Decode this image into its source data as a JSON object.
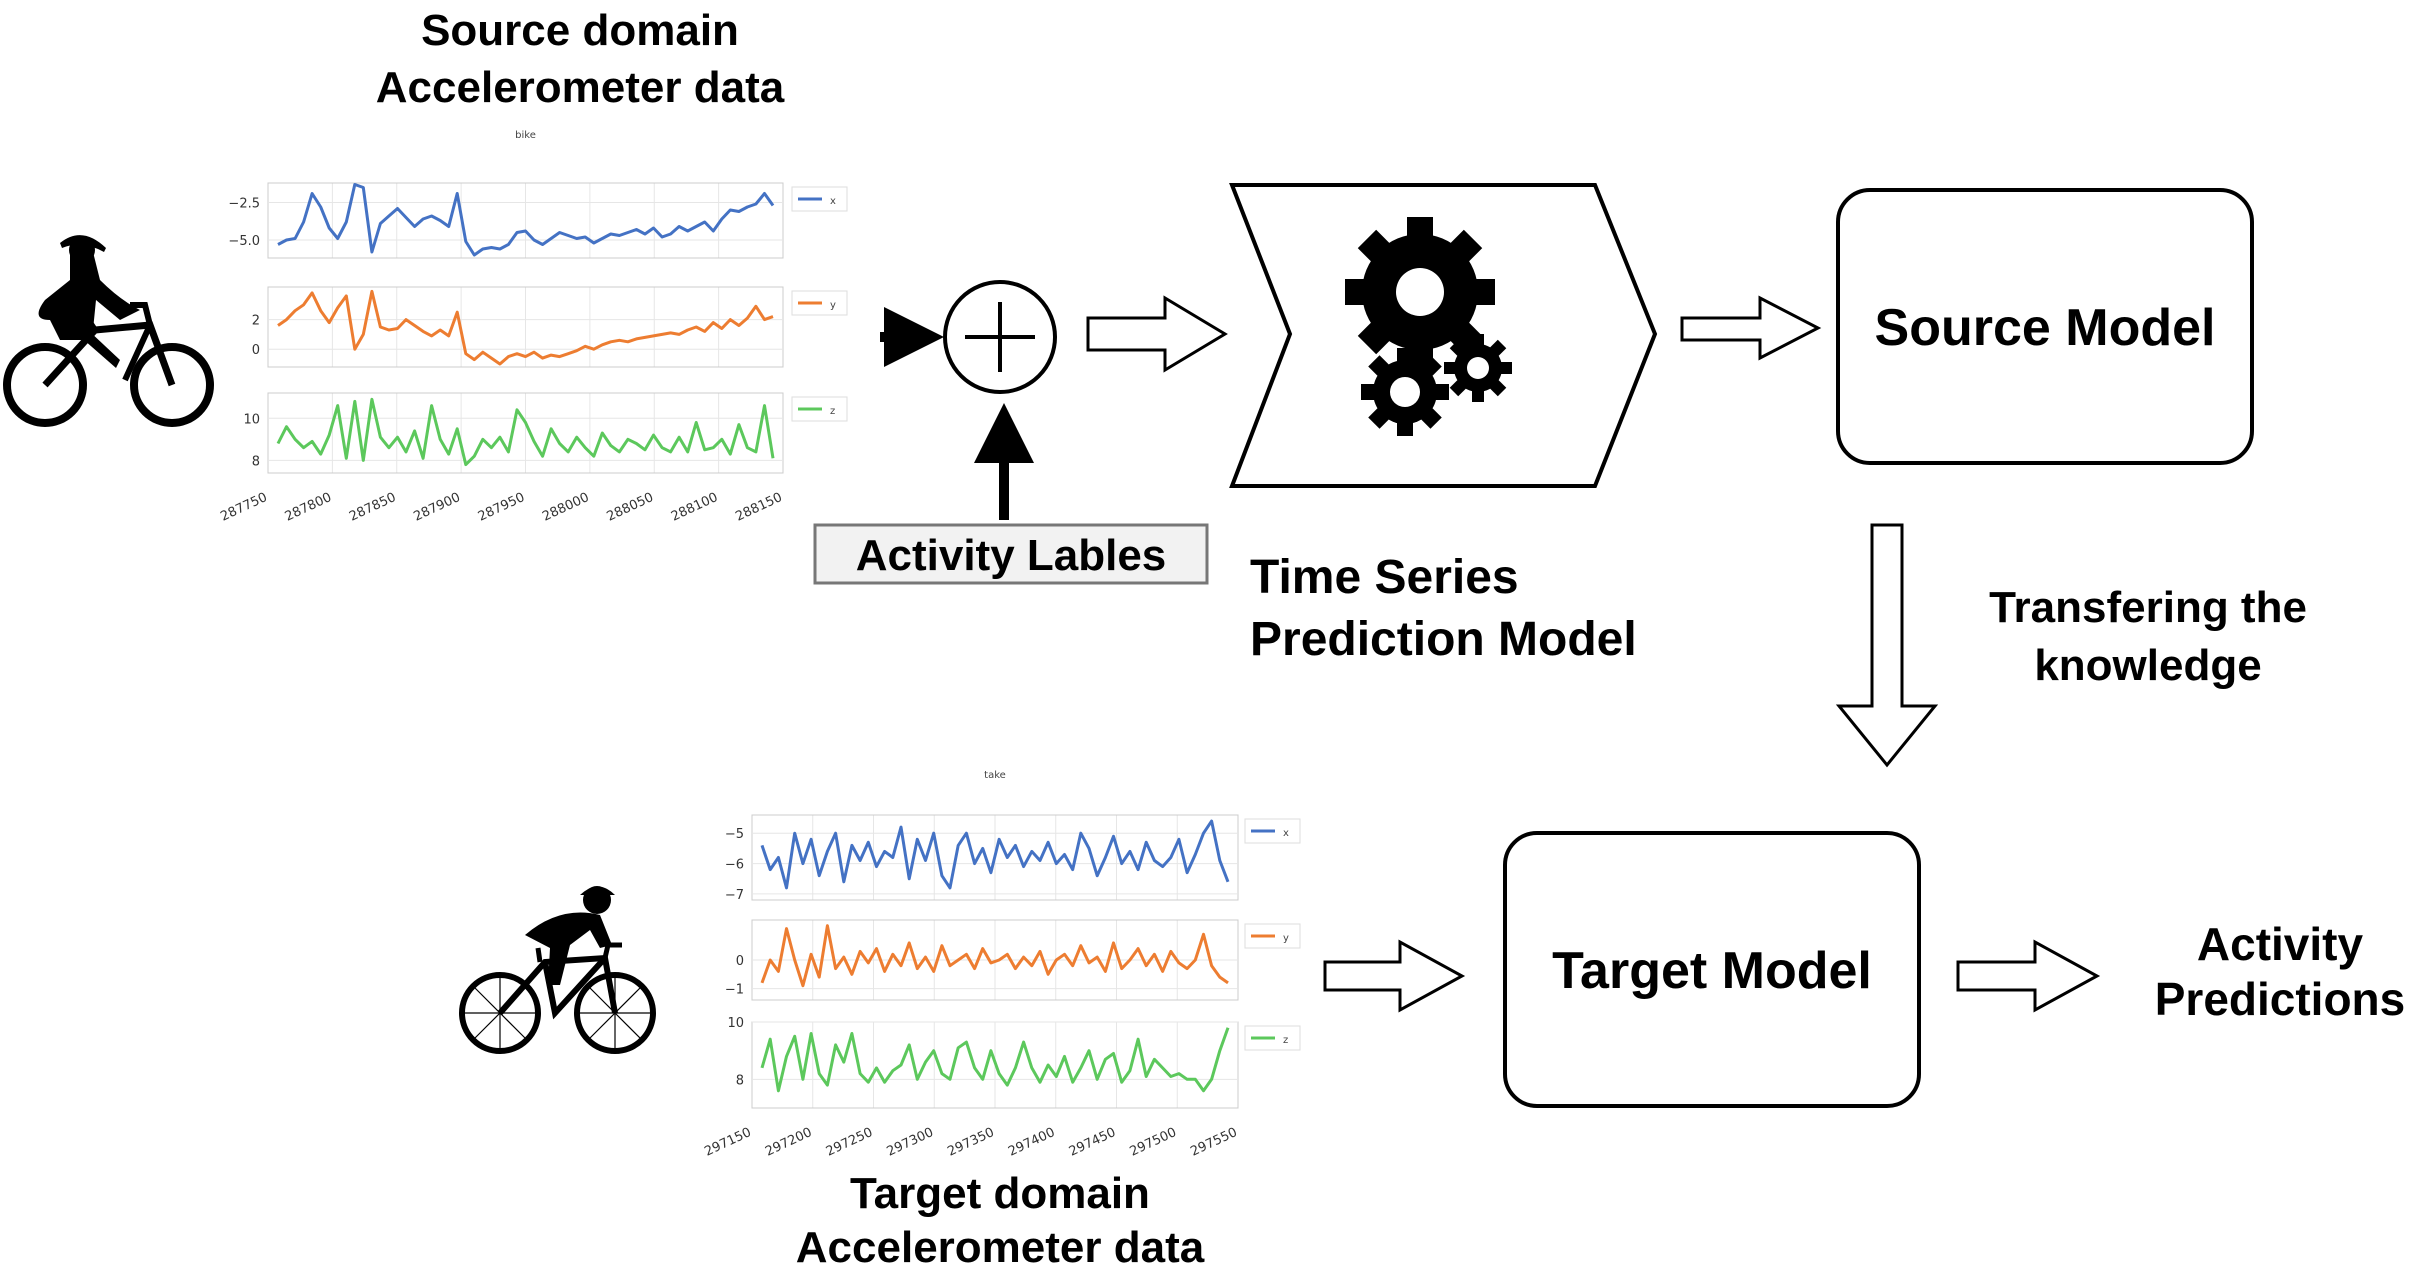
{
  "source_title": [
    "Source domain",
    "Accelerometer data"
  ],
  "target_title": [
    "Target domain",
    "Accelerometer data"
  ],
  "activity_labels": "Activity Lables",
  "prediction_model": [
    "Time Series",
    "Prediction Model"
  ],
  "source_model": "Source Model",
  "target_model": "Target Model",
  "transfer": [
    "Transfering the",
    "knowledge"
  ],
  "predictions": [
    "Activity",
    "Predictions"
  ],
  "series_colors": {
    "x": "#4472c4",
    "y": "#ed7d31",
    "z": "#5cc85c"
  },
  "chart_data": [
    {
      "type": "line",
      "title": "bike",
      "x_ticks": [
        "287750",
        "287800",
        "287850",
        "287900",
        "287950",
        "288000",
        "288050",
        "288100",
        "288150"
      ],
      "xlim": [
        287750,
        288150
      ],
      "panels": [
        {
          "name": "x",
          "ylim": [
            -6.2,
            -1.2
          ],
          "yticks": [
            "−2.5",
            "−5.0"
          ],
          "ytick_values": [
            -2.5,
            -5.0
          ],
          "values": [
            -5.3,
            -5.0,
            -4.9,
            -3.8,
            -1.9,
            -2.8,
            -4.2,
            -4.9,
            -3.8,
            -1.3,
            -1.5,
            -5.8,
            -3.9,
            -3.4,
            -2.9,
            -3.5,
            -4.1,
            -3.6,
            -3.4,
            -3.7,
            -4.1,
            -1.9,
            -5.1,
            -6.0,
            -5.6,
            -5.5,
            -5.6,
            -5.3,
            -4.5,
            -4.4,
            -5.0,
            -5.3,
            -4.9,
            -4.5,
            -4.7,
            -4.9,
            -4.8,
            -5.2,
            -4.9,
            -4.6,
            -4.7,
            -4.5,
            -4.3,
            -4.6,
            -4.2,
            -4.8,
            -4.6,
            -4.1,
            -4.4,
            -4.1,
            -3.8,
            -4.4,
            -3.6,
            -3.0,
            -3.1,
            -2.8,
            -2.6,
            -1.9,
            -2.7
          ]
        },
        {
          "name": "y",
          "ylim": [
            -1.2,
            4.2
          ],
          "yticks": [
            "2",
            "0"
          ],
          "ytick_values": [
            2,
            0
          ],
          "values": [
            1.6,
            2.0,
            2.6,
            3.0,
            3.8,
            2.6,
            1.8,
            2.8,
            3.6,
            0.0,
            1.0,
            3.9,
            1.5,
            1.3,
            1.4,
            2.0,
            1.6,
            1.2,
            0.9,
            1.3,
            0.9,
            2.5,
            -0.3,
            -0.7,
            -0.2,
            -0.6,
            -1.0,
            -0.5,
            -0.3,
            -0.5,
            -0.2,
            -0.6,
            -0.4,
            -0.5,
            -0.3,
            -0.1,
            0.2,
            0.0,
            0.3,
            0.5,
            0.6,
            0.5,
            0.7,
            0.8,
            0.9,
            1.0,
            1.1,
            1.0,
            1.3,
            1.5,
            1.2,
            1.8,
            1.4,
            2.0,
            1.6,
            2.1,
            2.9,
            2.0,
            2.2
          ]
        },
        {
          "name": "z",
          "ylim": [
            7.4,
            11.2
          ],
          "yticks": [
            "10",
            "8"
          ],
          "ytick_values": [
            10,
            8
          ],
          "values": [
            8.8,
            9.6,
            9.0,
            8.6,
            8.9,
            8.3,
            9.2,
            10.6,
            8.1,
            10.8,
            8.0,
            10.9,
            9.1,
            8.6,
            9.1,
            8.4,
            9.4,
            8.1,
            10.6,
            9.0,
            8.3,
            9.5,
            7.8,
            8.2,
            9.0,
            8.6,
            9.1,
            8.4,
            10.4,
            9.8,
            8.9,
            8.2,
            9.5,
            8.8,
            8.4,
            9.1,
            8.6,
            8.2,
            9.3,
            8.7,
            8.4,
            9.0,
            8.8,
            8.5,
            9.2,
            8.6,
            8.4,
            9.1,
            8.4,
            9.8,
            8.5,
            8.6,
            9.0,
            8.3,
            9.7,
            8.6,
            8.4,
            10.6,
            8.1
          ]
        }
      ]
    },
    {
      "type": "line",
      "title": "take",
      "x_ticks": [
        "297150",
        "297200",
        "297250",
        "297300",
        "297350",
        "297400",
        "297450",
        "297500",
        "297550"
      ],
      "xlim": [
        297150,
        297550
      ],
      "panels": [
        {
          "name": "x",
          "ylim": [
            -7.2,
            -4.4
          ],
          "yticks": [
            "−5",
            "−6",
            "−7"
          ],
          "ytick_values": [
            -5,
            -6,
            -7
          ],
          "values": [
            -5.4,
            -6.2,
            -5.8,
            -6.8,
            -5.0,
            -6.0,
            -5.2,
            -6.4,
            -5.6,
            -5.0,
            -6.6,
            -5.4,
            -5.9,
            -5.3,
            -6.1,
            -5.6,
            -5.8,
            -4.8,
            -6.5,
            -5.2,
            -5.9,
            -5.0,
            -6.4,
            -6.8,
            -5.4,
            -5.0,
            -6.0,
            -5.5,
            -6.3,
            -5.2,
            -5.8,
            -5.4,
            -6.1,
            -5.6,
            -5.9,
            -5.3,
            -6.0,
            -5.7,
            -6.2,
            -5.0,
            -5.5,
            -6.4,
            -5.8,
            -5.1,
            -6.0,
            -5.6,
            -6.2,
            -5.3,
            -5.9,
            -6.1,
            -5.8,
            -5.2,
            -6.3,
            -5.7,
            -5.0,
            -4.6,
            -5.9,
            -6.6
          ]
        },
        {
          "name": "y",
          "ylim": [
            -1.4,
            1.4
          ],
          "yticks": [
            "0",
            "−1"
          ],
          "ytick_values": [
            0,
            -1
          ],
          "values": [
            -0.8,
            0.0,
            -0.4,
            1.1,
            0.0,
            -0.9,
            0.2,
            -0.6,
            1.2,
            -0.3,
            0.1,
            -0.5,
            0.3,
            -0.1,
            0.4,
            -0.4,
            0.2,
            -0.2,
            0.6,
            -0.3,
            0.1,
            -0.4,
            0.5,
            -0.2,
            0.0,
            0.2,
            -0.3,
            0.4,
            -0.1,
            0.0,
            0.2,
            -0.3,
            0.1,
            -0.2,
            0.3,
            -0.5,
            0.0,
            0.2,
            -0.2,
            0.5,
            -0.1,
            0.1,
            -0.4,
            0.6,
            -0.3,
            0.0,
            0.4,
            -0.2,
            0.2,
            -0.4,
            0.3,
            -0.1,
            -0.3,
            0.0,
            0.9,
            -0.2,
            -0.6,
            -0.8
          ]
        },
        {
          "name": "z",
          "ylim": [
            7.0,
            10.0
          ],
          "yticks": [
            "10",
            "8"
          ],
          "ytick_values": [
            10,
            8
          ],
          "values": [
            8.4,
            9.4,
            7.6,
            8.8,
            9.5,
            8.0,
            9.6,
            8.2,
            7.8,
            9.2,
            8.6,
            9.6,
            8.2,
            7.9,
            8.4,
            7.9,
            8.3,
            8.5,
            9.2,
            8.0,
            8.6,
            9.0,
            8.2,
            8.0,
            9.1,
            9.3,
            8.4,
            8.0,
            9.0,
            8.2,
            7.8,
            8.4,
            9.3,
            8.4,
            7.9,
            8.5,
            8.1,
            8.8,
            7.9,
            8.4,
            9.0,
            8.0,
            8.7,
            8.9,
            7.9,
            8.3,
            9.4,
            8.1,
            8.7,
            8.4,
            8.1,
            8.2,
            8.0,
            8.0,
            7.6,
            8.0,
            9.0,
            9.8
          ]
        }
      ]
    }
  ]
}
